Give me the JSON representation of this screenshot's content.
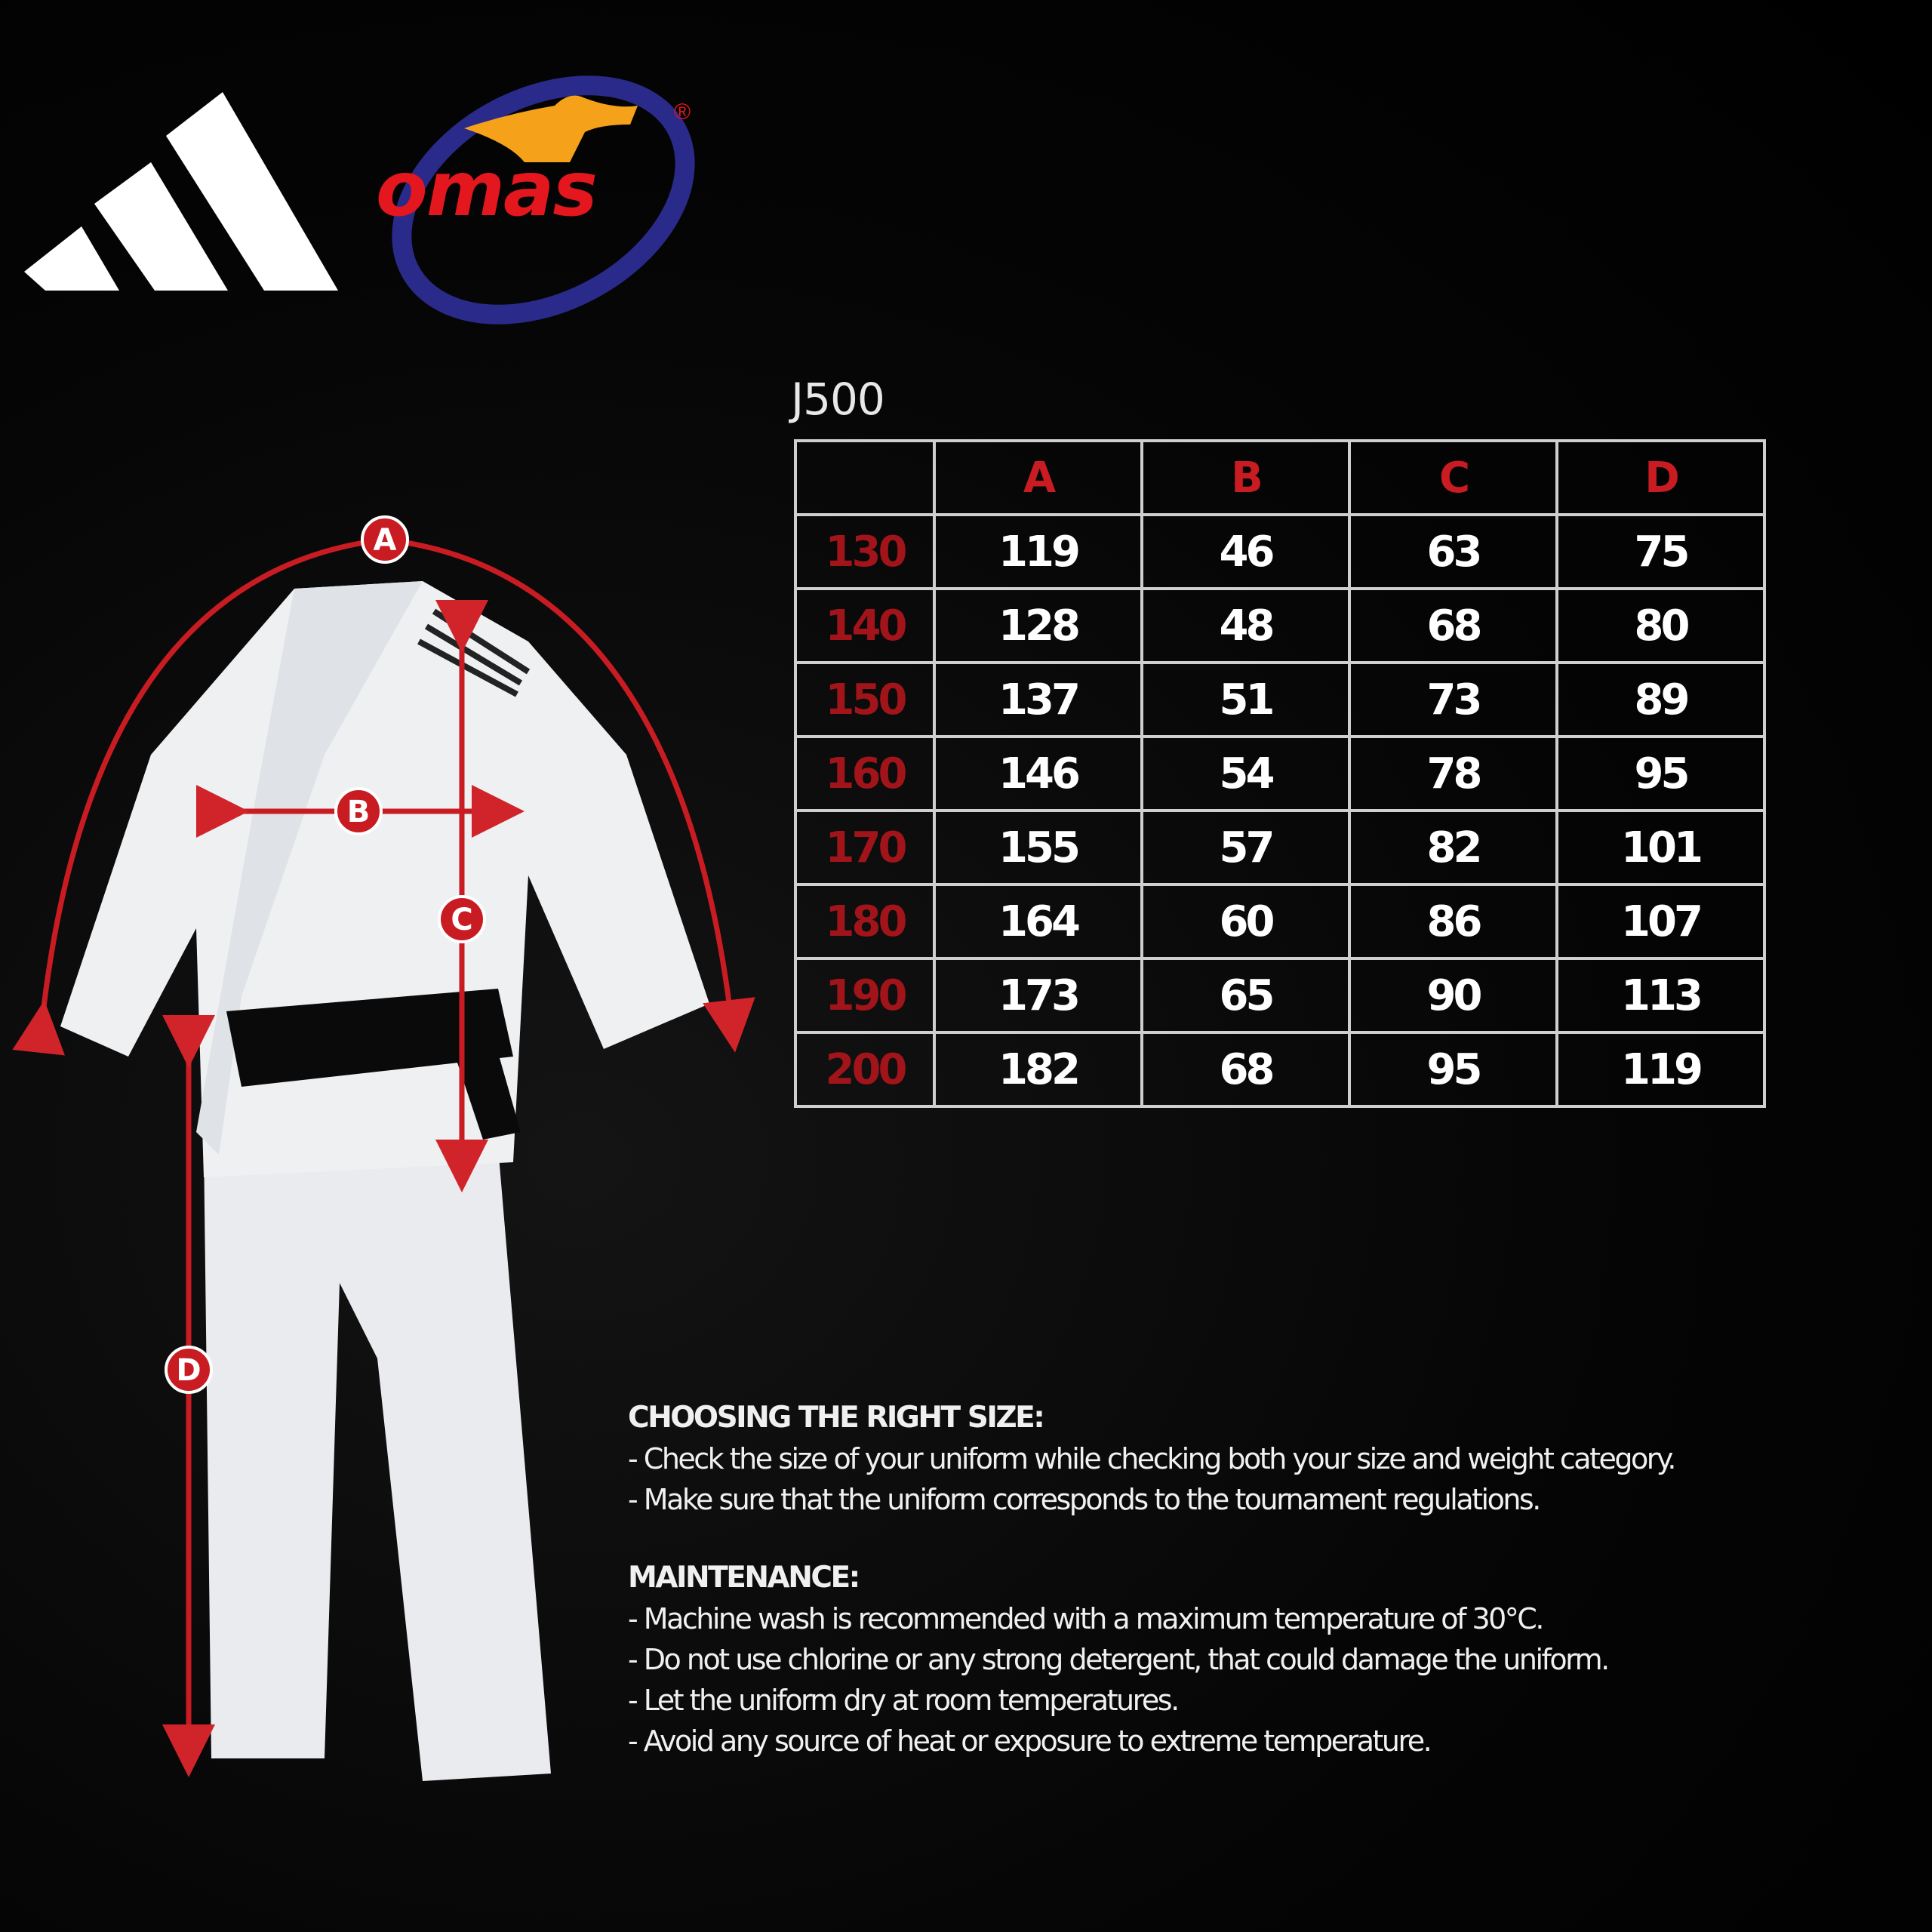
{
  "brand": {
    "adidas_logo": "adidas three-stripes logo",
    "omas_logo": "omas",
    "registered_mark": "®",
    "accent_color": "#c81c22"
  },
  "diagram": {
    "labels": [
      "A",
      "B",
      "C",
      "D"
    ]
  },
  "model": "J500",
  "table": {
    "columns": [
      "A",
      "B",
      "C",
      "D"
    ],
    "rows": [
      {
        "size": "130",
        "values": [
          "119",
          "46",
          "63",
          "75"
        ]
      },
      {
        "size": "140",
        "values": [
          "128",
          "48",
          "68",
          "80"
        ]
      },
      {
        "size": "150",
        "values": [
          "137",
          "51",
          "73",
          "89"
        ]
      },
      {
        "size": "160",
        "values": [
          "146",
          "54",
          "78",
          "95"
        ]
      },
      {
        "size": "170",
        "values": [
          "155",
          "57",
          "82",
          "101"
        ]
      },
      {
        "size": "180",
        "values": [
          "164",
          "60",
          "86",
          "107"
        ]
      },
      {
        "size": "190",
        "values": [
          "173",
          "65",
          "90",
          "113"
        ]
      },
      {
        "size": "200",
        "values": [
          "182",
          "68",
          "95",
          "119"
        ]
      }
    ]
  },
  "notes": {
    "choosing_title": "CHOOSING THE RIGHT SIZE:",
    "choosing": [
      "- Check the size of your uniform while checking both your size and weight category.",
      "- Make sure that the uniform corresponds to the tournament regulations."
    ],
    "maintenance_title": "MAINTENANCE:",
    "maintenance": [
      "- Machine wash is recommended with a maximum temperature of 30°C.",
      "- Do not use chlorine or any strong detergent, that could damage the uniform.",
      "- Let the uniform dry at room temperatures.",
      "- Avoid any source of heat or exposure to extreme temperature."
    ]
  }
}
